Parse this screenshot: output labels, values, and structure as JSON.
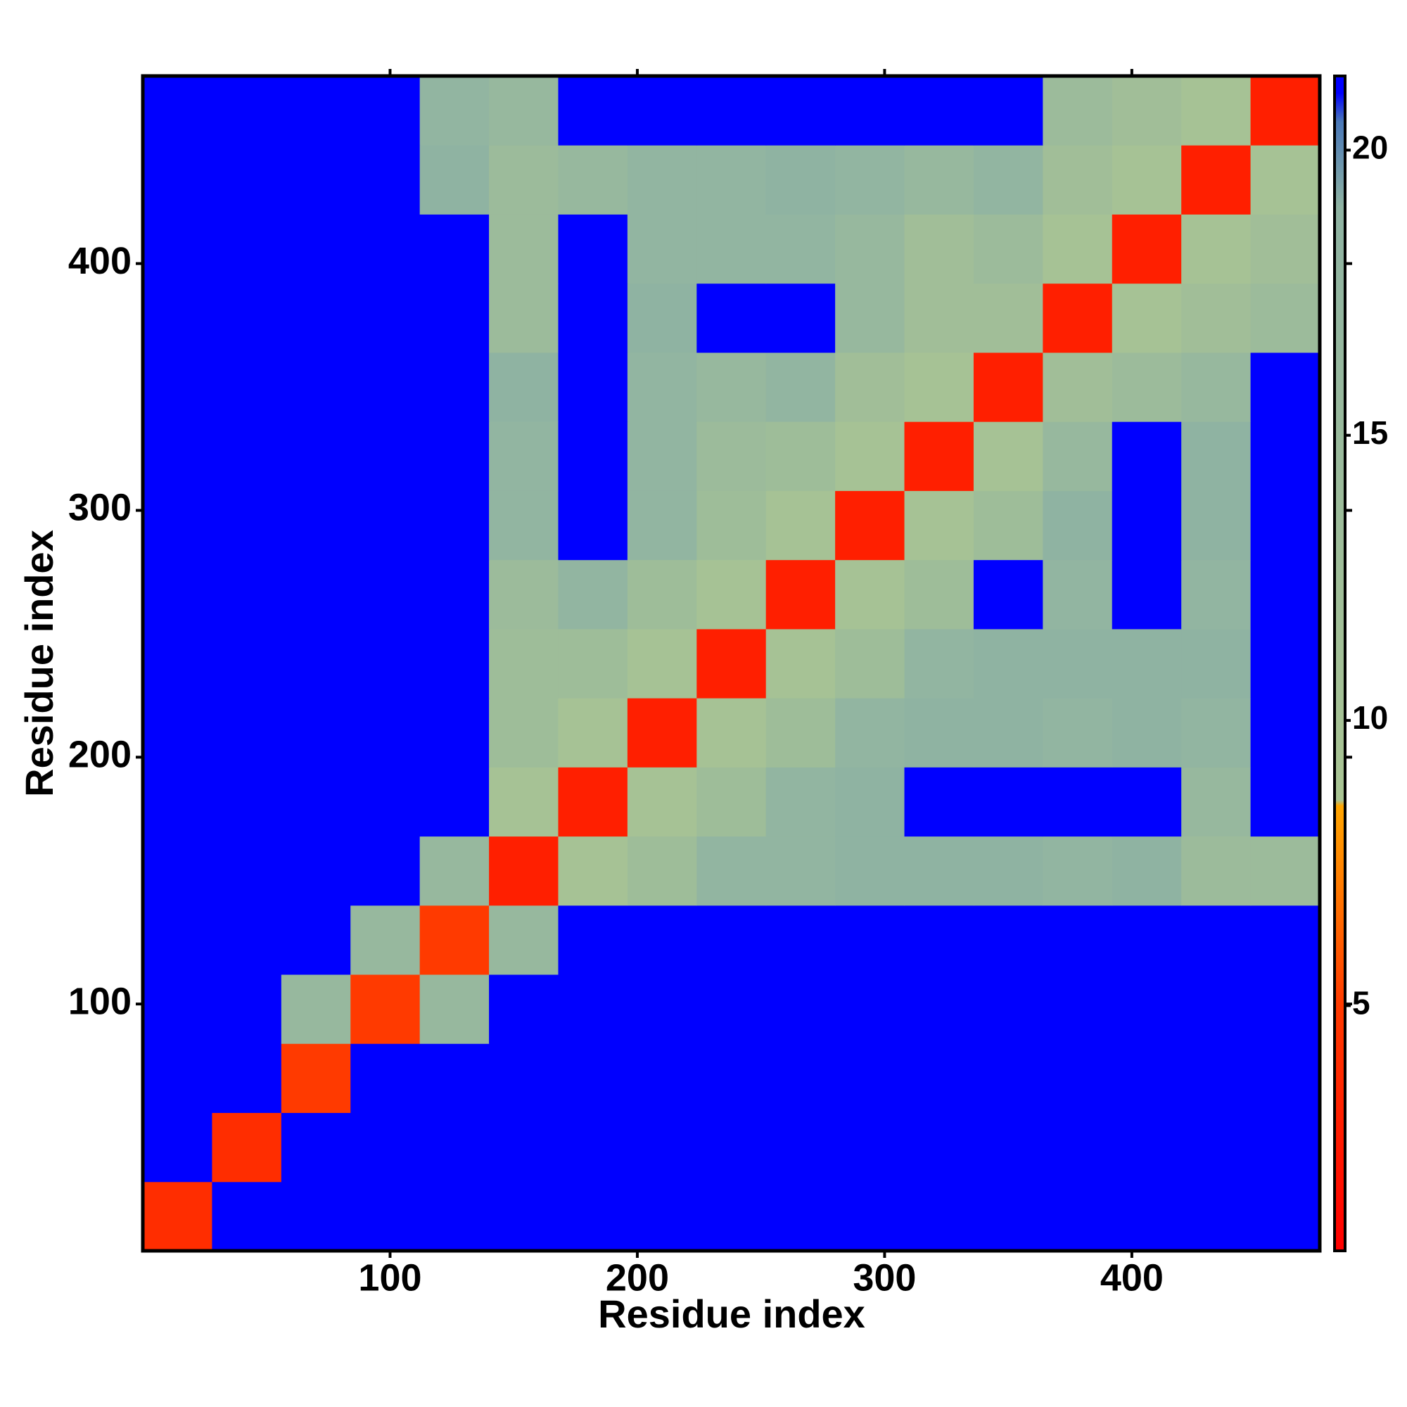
{
  "chart_data": {
    "type": "heatmap",
    "xlabel": "Residue index",
    "ylabel": "Residue index",
    "xbins": [
      0,
      28,
      56,
      84,
      112,
      140,
      168,
      196,
      224,
      252,
      280,
      308,
      336,
      364,
      392,
      420,
      448,
      476
    ],
    "ybins": [
      0,
      28,
      56,
      84,
      112,
      140,
      168,
      196,
      224,
      252,
      280,
      308,
      336,
      364,
      392,
      420,
      448,
      476
    ],
    "xlim": [
      0,
      476
    ],
    "ylim": [
      0,
      476
    ],
    "xticks": [
      100,
      200,
      300,
      400
    ],
    "yticks": [
      100,
      200,
      300,
      400
    ],
    "clim": [
      0.7,
      21.3
    ],
    "cticks": [
      5,
      10,
      15,
      20
    ],
    "colorscale": [
      [
        0.7,
        "#ff0000"
      ],
      [
        5,
        "#ff3a00"
      ],
      [
        8.5,
        "#ffa500"
      ],
      [
        8.6,
        "#a9c493"
      ],
      [
        19,
        "#8fb3a2"
      ],
      [
        20.5,
        "#4a78b8"
      ],
      [
        21,
        "#0000ff"
      ]
    ],
    "values": [
      [
        4,
        21,
        21,
        21,
        21,
        21,
        21,
        21,
        21,
        21,
        21,
        21,
        21,
        21,
        21,
        21,
        21
      ],
      [
        21,
        4,
        21,
        21,
        21,
        21,
        21,
        21,
        21,
        21,
        21,
        21,
        21,
        21,
        21,
        21,
        21
      ],
      [
        21,
        21,
        5,
        21,
        21,
        21,
        21,
        21,
        21,
        21,
        21,
        21,
        21,
        21,
        21,
        21,
        21
      ],
      [
        21,
        21,
        16,
        5,
        16,
        21,
        21,
        21,
        21,
        21,
        21,
        21,
        21,
        21,
        21,
        21,
        21
      ],
      [
        21,
        21,
        21,
        16,
        5,
        16,
        21,
        21,
        21,
        21,
        21,
        21,
        21,
        21,
        21,
        21,
        21
      ],
      [
        21,
        21,
        21,
        21,
        16,
        3,
        10,
        13,
        18,
        18,
        19,
        19,
        19,
        18,
        19,
        14,
        14
      ],
      [
        21,
        21,
        21,
        21,
        21,
        10,
        3,
        10,
        13,
        18,
        19,
        21,
        21,
        21,
        21,
        16,
        21
      ],
      [
        21,
        21,
        21,
        21,
        21,
        13,
        10,
        3,
        10,
        13,
        18,
        19,
        19,
        18,
        19,
        18,
        21
      ],
      [
        21,
        21,
        21,
        21,
        21,
        13,
        13,
        10,
        3,
        10,
        13,
        18,
        19,
        19,
        19,
        19,
        21
      ],
      [
        21,
        21,
        21,
        21,
        21,
        14,
        18,
        13,
        10,
        3,
        10,
        13,
        21,
        18,
        21,
        18,
        21
      ],
      [
        21,
        21,
        21,
        21,
        21,
        18,
        21,
        18,
        13,
        10,
        3,
        10,
        13,
        19,
        21,
        19,
        21
      ],
      [
        21,
        21,
        21,
        21,
        21,
        18,
        21,
        18,
        14,
        13,
        10,
        3,
        10,
        16,
        21,
        19,
        21
      ],
      [
        21,
        21,
        21,
        21,
        21,
        19,
        21,
        18,
        16,
        18,
        12,
        10,
        3,
        12,
        14,
        16,
        21
      ],
      [
        21,
        21,
        21,
        21,
        21,
        14,
        21,
        19,
        21,
        21,
        16,
        12,
        12,
        3,
        10,
        12,
        14
      ],
      [
        21,
        21,
        21,
        21,
        21,
        14,
        21,
        18,
        18,
        18,
        16,
        12,
        14,
        10,
        3,
        10,
        12
      ],
      [
        21,
        21,
        21,
        21,
        19,
        14,
        16,
        18,
        18,
        19,
        18,
        16,
        18,
        12,
        10,
        3,
        10
      ],
      [
        21,
        21,
        21,
        21,
        18,
        16,
        21,
        21,
        21,
        21,
        21,
        21,
        21,
        14,
        12,
        10,
        3
      ]
    ]
  }
}
